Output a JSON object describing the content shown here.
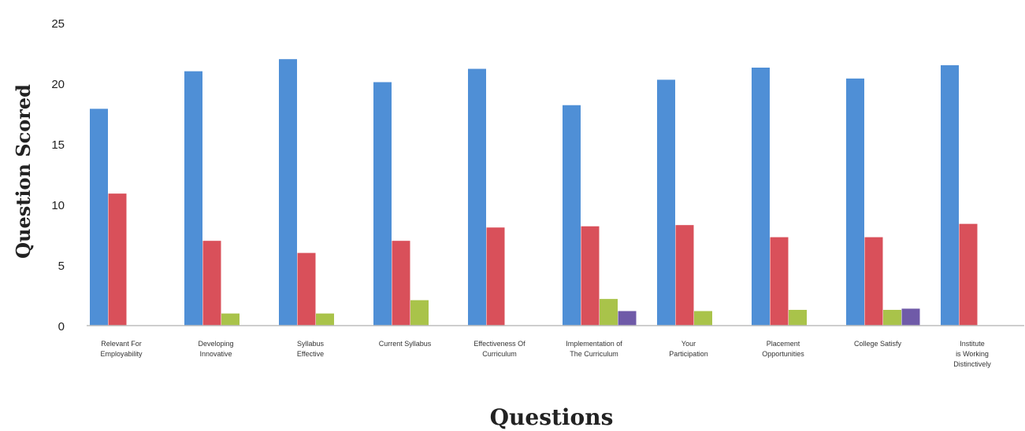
{
  "chart_data": {
    "type": "bar",
    "title": "",
    "xlabel": "Questions",
    "ylabel": "Question Scored",
    "ylim": [
      0,
      25
    ],
    "yticks": [
      0,
      5,
      10,
      15,
      20,
      25
    ],
    "grid": false,
    "legend": "none",
    "categories": [
      "Relevant For Employability",
      "Developing Innovative",
      "Syllabus Effective",
      "Current Syllabus",
      "Effectiveness Of Curriculum",
      "Implementation of The Curriculum",
      "Your Participation",
      "Placement Opportunities",
      "College Satisfy",
      "Institute is Working Distinctively"
    ],
    "series": [
      {
        "color": "#4f8fd6",
        "values": [
          17.9,
          21.0,
          22.0,
          20.1,
          21.2,
          18.2,
          20.3,
          21.3,
          20.4,
          21.5
        ]
      },
      {
        "color": "#d9505a",
        "values": [
          10.9,
          7.0,
          6.0,
          7.0,
          8.1,
          8.2,
          8.3,
          7.3,
          7.3,
          8.4
        ]
      },
      {
        "color": "#a9c34a",
        "values": [
          0,
          1.0,
          1.0,
          2.1,
          0,
          2.2,
          1.2,
          1.3,
          1.3,
          0
        ]
      },
      {
        "color": "#6f5aa8",
        "values": [
          0,
          0,
          0,
          0,
          0,
          1.2,
          0,
          0,
          1.4,
          0
        ]
      }
    ]
  }
}
